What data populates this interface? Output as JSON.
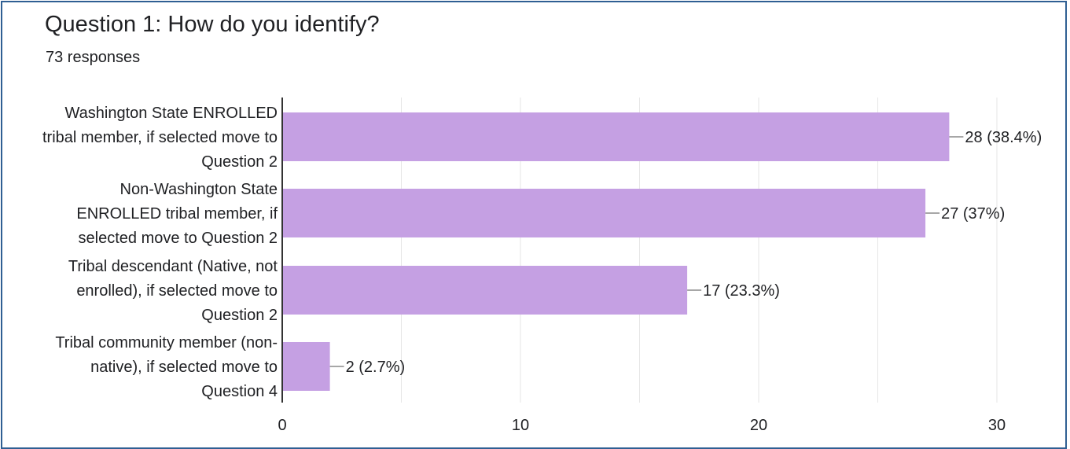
{
  "header": {
    "title": "Question 1: How do you identify?",
    "subtitle": "73 responses"
  },
  "chart_data": {
    "type": "bar",
    "orientation": "horizontal",
    "title": "Question 1: How do you identify?",
    "subtitle": "73 responses",
    "xlabel": "",
    "ylabel": "",
    "xlim": [
      0,
      30
    ],
    "xticks": [
      "0",
      "10",
      "20",
      "30"
    ],
    "grid": true,
    "legend": "none",
    "bar_color": "#c5a0e3",
    "categories": [
      [
        "Washington State ENROLLED",
        "tribal member, if selected move to",
        "Question 2"
      ],
      [
        "Non-Washington State",
        "ENROLLED tribal member, if",
        "selected move to Question 2"
      ],
      [
        "Tribal descendant (Native, not",
        "enrolled), if selected move to",
        "Question 2"
      ],
      [
        "Tribal community member (non-",
        "native), if selected move to",
        "Question 4"
      ]
    ],
    "values": [
      28,
      27,
      17,
      2
    ],
    "value_labels": [
      "28 (38.4%)",
      "27 (37%)",
      "17 (23.3%)",
      "2 (2.7%)"
    ]
  }
}
